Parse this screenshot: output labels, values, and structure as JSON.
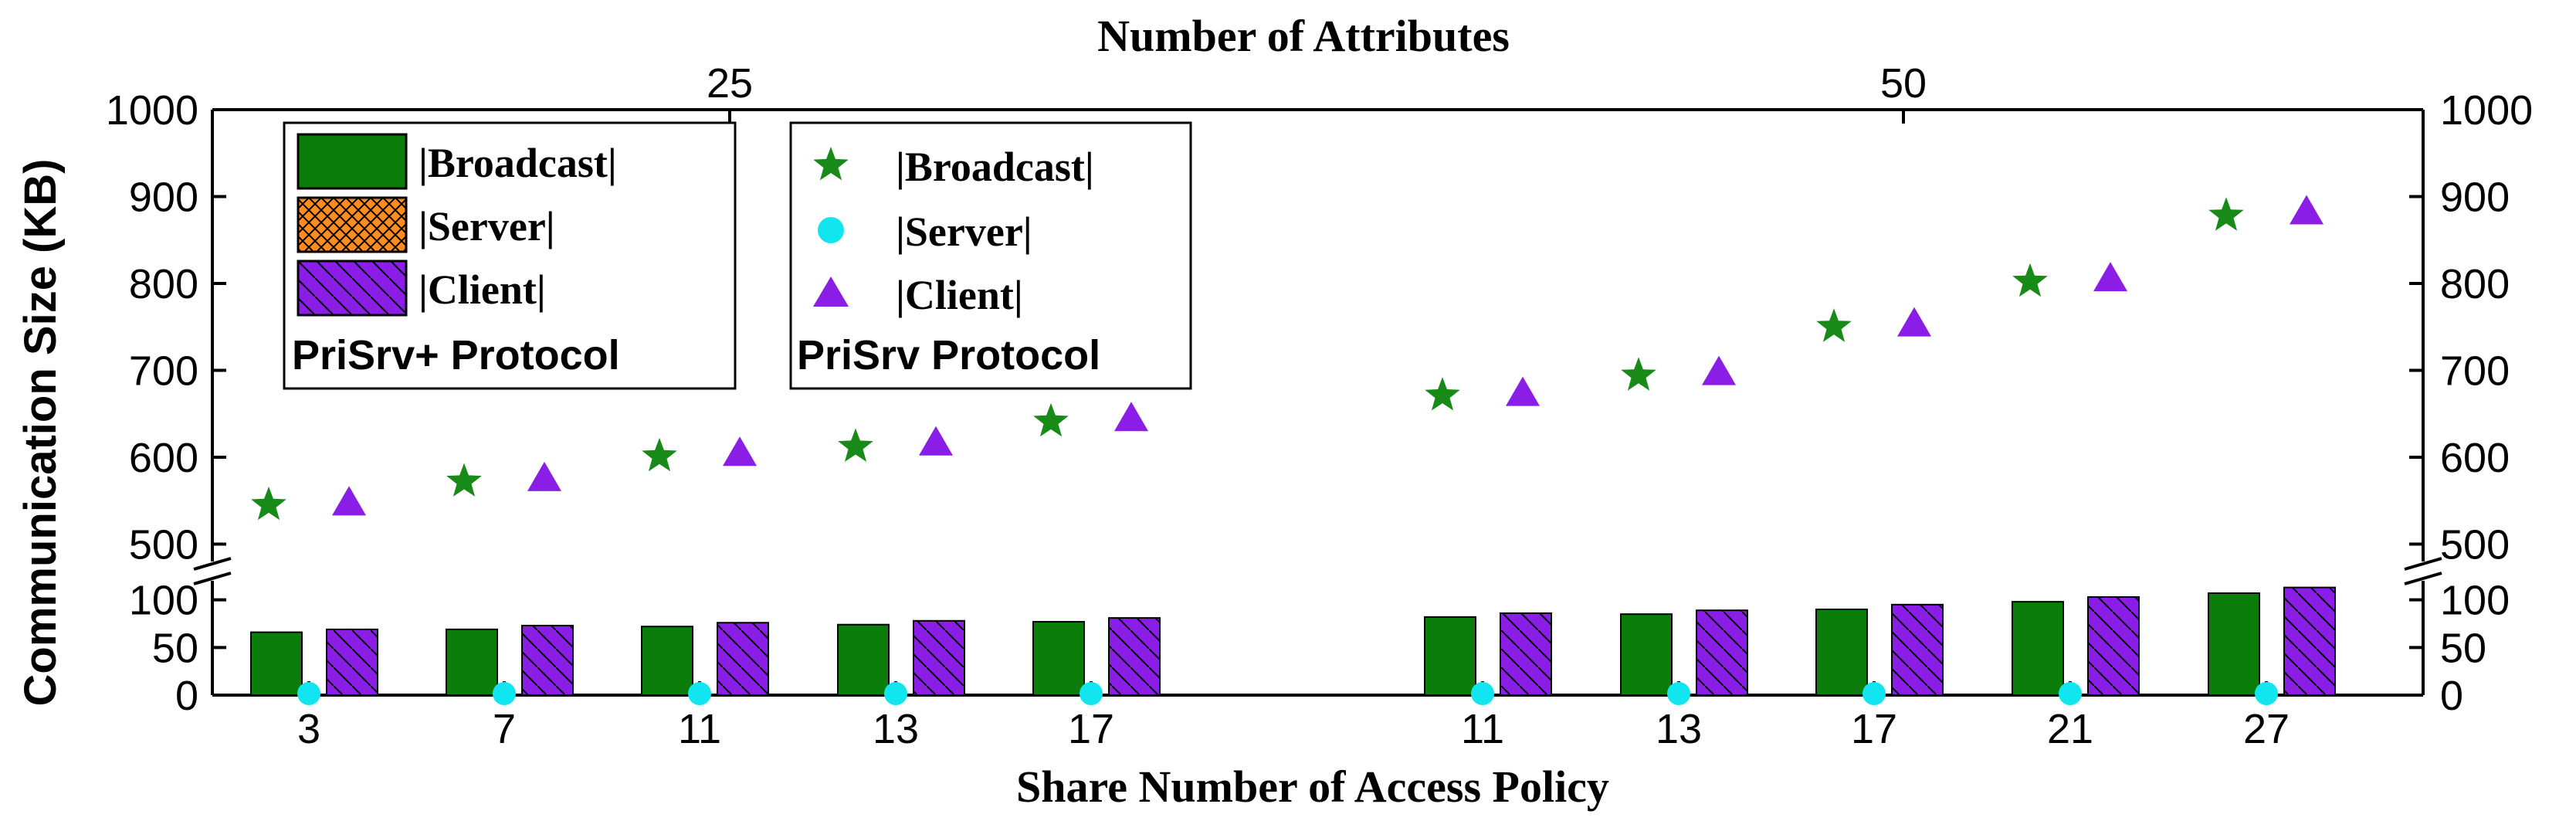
{
  "chart_data": {
    "type": "bar",
    "title": "Number of Attributes",
    "xlabel": "Share Number of Access Policy",
    "ylabel": "Communication Size (KB)",
    "top_axis": {
      "label": "Number of Attributes",
      "ticks": [
        "25",
        "50"
      ]
    },
    "y_axis": {
      "broken": true,
      "lower_range": [
        0,
        120
      ],
      "upper_range": [
        480,
        1000
      ],
      "lower_ticks": [
        "0",
        "50",
        "100"
      ],
      "upper_ticks": [
        "500",
        "600",
        "700",
        "800",
        "900",
        "1000"
      ]
    },
    "groups": [
      {
        "attributes": "25",
        "categories": [
          "3",
          "7",
          "11",
          "13",
          "17"
        ]
      },
      {
        "attributes": "50",
        "categories": [
          "11",
          "13",
          "17",
          "21",
          "27"
        ]
      }
    ],
    "prisrv_plus": {
      "protocol_label": "PriSrv+ Protocol",
      "series": [
        {
          "name": "|Broadcast|",
          "color": "#0a7d0a",
          "values": [
            66,
            69,
            72,
            74,
            77,
            82,
            85,
            90,
            98,
            107
          ]
        },
        {
          "name": "|Server|",
          "color": "#ff8c1a",
          "values": [
            1,
            1,
            1,
            1,
            1,
            1,
            1,
            1,
            1,
            1
          ]
        },
        {
          "name": "|Client|",
          "color": "#8a1ee6",
          "values": [
            69,
            73,
            76,
            78,
            81,
            86,
            89,
            95,
            103,
            113
          ]
        }
      ]
    },
    "prisrv": {
      "protocol_label": "PriSrv Protocol",
      "series": [
        {
          "name": "|Broadcast|",
          "color": "#178a17",
          "marker": "star",
          "values": [
            545,
            572,
            601,
            612,
            641,
            671,
            694,
            750,
            802,
            878
          ]
        },
        {
          "name": "|Server|",
          "color": "#11e6f0",
          "marker": "circle",
          "values": [
            0,
            0,
            0,
            0,
            0,
            0,
            0,
            0,
            0,
            0
          ]
        },
        {
          "name": "|Client|",
          "color": "#8a1ee6",
          "marker": "triangle",
          "values": [
            549,
            577,
            606,
            618,
            646,
            675,
            699,
            755,
            807,
            884
          ]
        }
      ]
    }
  }
}
